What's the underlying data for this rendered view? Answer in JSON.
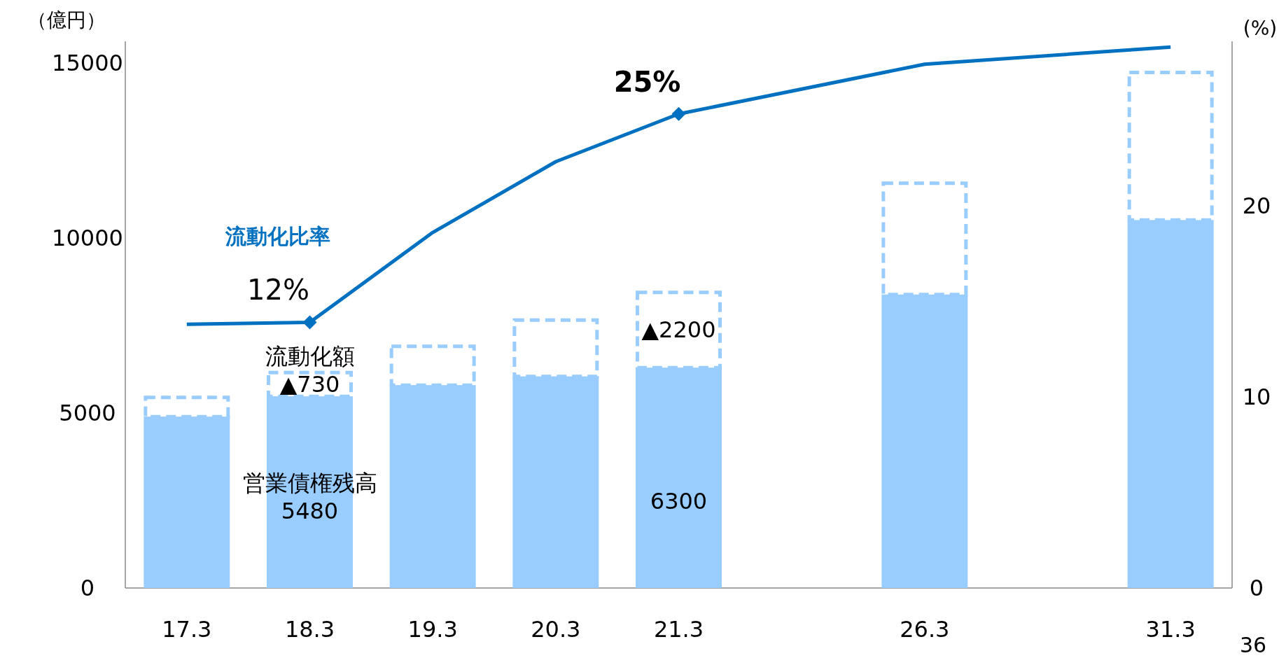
{
  "chart_data": {
    "type": "bar",
    "stacked": true,
    "ylabel": "（億円）",
    "y2label": "(%)",
    "categories": [
      "17.3",
      "18.3",
      "19.3",
      "20.3",
      "21.3",
      null,
      "26.3",
      null,
      "31.3"
    ],
    "ylim": [
      0,
      15630
    ],
    "yticks": [
      0,
      5000,
      10000,
      15000
    ],
    "y2lim": [
      0,
      28.6
    ],
    "y2ticks": [
      0,
      10,
      20
    ],
    "series": [
      {
        "name": "営業債権残高",
        "color": "#99ccff",
        "values": [
          4900,
          5480,
          5800,
          6050,
          6300,
          null,
          8390,
          null,
          10520
        ],
        "value_labels": [
          null,
          "5480",
          null,
          null,
          "6300",
          null,
          null,
          null,
          null
        ]
      },
      {
        "name": "流動化額",
        "color": "#99ccff",
        "line_style": "dashed",
        "values": [
          600,
          730,
          1160,
          1660,
          2200,
          null,
          3230,
          null,
          4270
        ],
        "value_labels": [
          null,
          "▲730",
          null,
          null,
          "▲2200",
          null,
          null,
          null,
          null
        ]
      },
      {
        "name": "流動化比率",
        "type": "line",
        "axis": "y2",
        "color": "#0070c0",
        "values": [
          13.8,
          13.9,
          18.6,
          22.3,
          24.8,
          null,
          27.4,
          null,
          28.3
        ]
      },
      {
        "type": "scatter",
        "axis": "y2",
        "color": "#0070c0",
        "marker": "diamond",
        "x": [
          "18.3",
          "21.3"
        ],
        "values": [
          13.9,
          24.8
        ]
      }
    ],
    "annotations": [
      "12%",
      "25%",
      "36"
    ],
    "grid": false,
    "legend": false
  }
}
